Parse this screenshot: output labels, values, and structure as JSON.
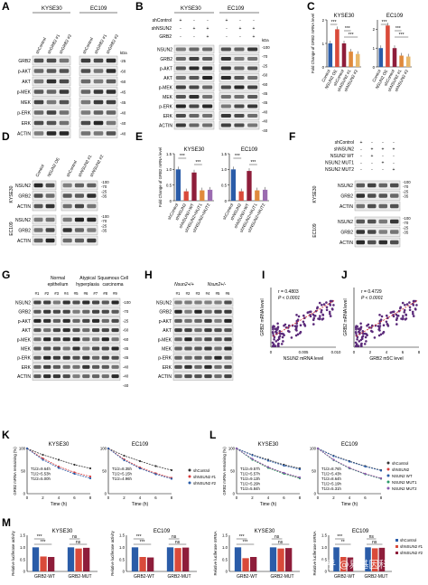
{
  "panels": {
    "A": {
      "letter": "A",
      "groups": [
        "KYSE30",
        "EC109"
      ],
      "columns": [
        "shControl",
        "shGRB2 #1",
        "shGRB2 #2"
      ],
      "row_labels": [
        "GRB2",
        "p-AKT",
        "AKT",
        "p-MEK",
        "MEK",
        "p-ERK",
        "ERK",
        "ACTIN"
      ],
      "kda_header": "kDa",
      "kda": [
        "-25",
        "-60",
        "-60",
        "-45",
        "-45",
        "-40",
        "-40",
        "-40"
      ]
    },
    "B": {
      "letter": "B",
      "groups": [
        "KYSE30",
        "EC109"
      ],
      "conditions": [
        {
          "label": "shControl",
          "marks": [
            "+",
            "-",
            "-",
            "+",
            "-",
            "-"
          ]
        },
        {
          "label": "shNSUN2",
          "marks": [
            "-",
            "+",
            "+",
            "-",
            "+",
            "+"
          ]
        },
        {
          "label": "GRB2",
          "marks": [
            "-",
            "-",
            "+",
            "-",
            "-",
            "+"
          ]
        }
      ],
      "row_labels": [
        "NSUN2",
        "GRB2",
        "p-AKT",
        "AKT",
        "p-MEK",
        "MEK",
        "p-ERK",
        "ERK",
        "ACTIN"
      ],
      "kda_header": "kDa",
      "kda": [
        "-100",
        "-70",
        "-25",
        "-60",
        "-60",
        "-45",
        "-45",
        "-40",
        "-40",
        "-40"
      ]
    },
    "C": {
      "letter": "C"
    },
    "D": {
      "letter": "D",
      "columns": [
        "Control",
        "NSUN2 OE",
        "shControl",
        "shNSUN2 #1",
        "shNSUN2 #2"
      ],
      "groups": [
        "KYSE30",
        "EC109"
      ],
      "row_labels": [
        "NSUN2",
        "GRB2",
        "ACTIN",
        "NSUN2",
        "GRB2",
        "ACTIN"
      ],
      "kda": [
        "-100",
        "-70",
        "-25",
        "-35",
        "-100",
        "-70",
        "-25",
        "-35"
      ]
    },
    "E": {
      "letter": "E"
    },
    "F": {
      "letter": "F",
      "conditions": [
        {
          "label": "shControl",
          "marks": [
            "+",
            "-",
            "-",
            "-"
          ]
        },
        {
          "label": "shNSUN2",
          "marks": [
            "-",
            "+",
            "+",
            "+"
          ]
        },
        {
          "label": "NSUN2 WT",
          "marks": [
            "-",
            "+",
            "-",
            "-"
          ]
        },
        {
          "label": "NSUN2 MUT1",
          "marks": [
            "-",
            "-",
            "+",
            "-"
          ]
        },
        {
          "label": "NSUN2 MUT2",
          "marks": [
            "-",
            "-",
            "-",
            "+"
          ]
        }
      ],
      "groups": [
        "KYSE30",
        "EC109"
      ],
      "row_labels": [
        "NSUN2",
        "GRB2",
        "ACTIN",
        "NSUN2",
        "GRB2",
        "ACTIN"
      ],
      "kda": [
        "-100",
        "-70",
        "-25",
        "-35",
        "-100",
        "-70",
        "-25",
        "-35"
      ]
    },
    "G": {
      "letter": "G",
      "groups": [
        "Normal epithelium",
        "Atypical hyperplasia",
        "Squamous Cell carcinoma"
      ],
      "lanes": [
        "#1",
        "#2",
        "#3",
        "#4",
        "#5",
        "#6",
        "#7",
        "#8",
        "#9"
      ],
      "row_labels": [
        "NSUN2",
        "GRB2",
        "p-AKT",
        "AKT",
        "p-MEK",
        "MEK",
        "p-ERK",
        "ERK",
        "ACTIN"
      ],
      "kda": [
        "-100",
        "-70",
        "-25",
        "-60",
        "-60",
        "-45",
        "-45",
        "-40",
        "-40",
        "-40"
      ]
    },
    "H": {
      "letter": "H",
      "groups": [
        "Nsun2+/+",
        "Nsun2+/-"
      ],
      "lanes": [
        "#1",
        "#2",
        "#3",
        "#4",
        "#5",
        "#6"
      ],
      "row_labels": [
        "NSUN2",
        "GRB2",
        "p-AKT",
        "AKT",
        "p-MEK",
        "MEK",
        "p-ERK",
        "ERK",
        "ACTIN"
      ]
    },
    "I": {
      "letter": "I",
      "r": "r = 0.4803",
      "p": "P < 0.0001"
    },
    "J": {
      "letter": "J",
      "r": "r = 0.4729",
      "p": "P < 0.0001"
    },
    "K": {
      "letter": "K",
      "legend": [
        "shControl",
        "shNSUN2 #1",
        "shNSUN2 #2"
      ]
    },
    "L": {
      "letter": "L",
      "legend": [
        "shControl",
        "shNSUN2",
        "NSUN2 WT",
        "NSUN2 MUT1",
        "NSUN2 MUT2"
      ]
    },
    "M": {
      "letter": "M",
      "legend": [
        "shControl",
        "shNSUN2 #1",
        "shNSUN2 #2"
      ]
    }
  },
  "chart_data": [
    {
      "panel": "C",
      "type": "bar",
      "title": "KYSE30",
      "ylabel": "Fold Change of GRB2 mRNA level",
      "ylim": [
        0,
        2
      ],
      "yticks": [
        "0",
        "1",
        "2"
      ],
      "categories": [
        "Control",
        "NSUN2 OE",
        "shControl",
        "shNSUN2 #1",
        "shNSUN2 #2"
      ],
      "values": [
        1.0,
        1.6,
        1.0,
        0.65,
        0.55
      ],
      "colors": [
        "#2a5ca8",
        "#d94a3a",
        "#8e1d3a",
        "#e08a3c",
        "#e8b86a"
      ],
      "significance": [
        "***",
        "***",
        "***"
      ]
    },
    {
      "panel": "C",
      "type": "bar",
      "title": "EC109",
      "ylabel": "",
      "ylim": [
        0,
        2.5
      ],
      "yticks": [
        "0",
        "1",
        "2"
      ],
      "categories": [
        "Control",
        "NSUN2 OE",
        "shControl",
        "shNSUN2 #1",
        "shNSUN2 #2"
      ],
      "values": [
        1.0,
        2.2,
        1.0,
        0.6,
        0.55
      ],
      "colors": [
        "#2a5ca8",
        "#d94a3a",
        "#8e1d3a",
        "#e08a3c",
        "#e8b86a"
      ],
      "significance": [
        "***",
        "***",
        "***"
      ]
    },
    {
      "panel": "E",
      "type": "bar",
      "title": "KYSE30",
      "ylabel": "Fold Change of GRB2 mRNA level",
      "ylim": [
        0,
        1.5
      ],
      "yticks": [
        "0",
        "0.5",
        "1.0",
        "1.5"
      ],
      "categories": [
        "shControl",
        "shNSUN2",
        "shNSUN2+WT",
        "shNSUN2+MUT1",
        "shNSUN2+MUT2"
      ],
      "values": [
        1.0,
        0.3,
        0.9,
        0.33,
        0.35
      ],
      "colors": [
        "#2a5ca8",
        "#d94a3a",
        "#8e1d3a",
        "#e08a3c",
        "#9b6bb0"
      ],
      "significance": [
        "***",
        "***"
      ]
    },
    {
      "panel": "E",
      "type": "bar",
      "title": "EC109",
      "ylabel": "",
      "ylim": [
        0,
        1.5
      ],
      "yticks": [
        "0",
        "0.5",
        "1.0",
        "1.5"
      ],
      "categories": [
        "shControl",
        "shNSUN2",
        "shNSUN2+WT",
        "shNSUN2+MUT1",
        "shNSUN2+MUT2"
      ],
      "values": [
        1.0,
        0.3,
        0.95,
        0.33,
        0.35
      ],
      "colors": [
        "#2a5ca8",
        "#d94a3a",
        "#8e1d3a",
        "#e08a3c",
        "#9b6bb0"
      ],
      "significance": [
        "***",
        "***"
      ]
    },
    {
      "panel": "I",
      "type": "scatter",
      "xlabel": "NSUN2 mRNA level",
      "ylabel": "GRB2 mRNA level",
      "xlim": [
        0,
        0.01
      ],
      "xticks": [
        "0",
        "0.005",
        "0.010"
      ],
      "trend": "positive"
    },
    {
      "panel": "J",
      "type": "scatter",
      "xlabel": "GRB2 m5C level",
      "ylabel": "GRB2 mRNA level",
      "xlim": [
        0,
        8
      ],
      "xticks": [
        "0",
        "2",
        "4",
        "6",
        "8"
      ],
      "trend": "positive"
    },
    {
      "panel": "K",
      "type": "line",
      "title": "KYSE30",
      "xlabel": "Time (h)",
      "ylabel": "GRB2 mRNA remaining (%)",
      "xlim": [
        0,
        8
      ],
      "ylim": [
        0,
        100
      ],
      "xticks": [
        "0",
        "2",
        "4",
        "6",
        "8"
      ],
      "yticks": [
        "0",
        "50",
        "100"
      ],
      "half_lives": [
        "T1/2=9.64h",
        "T1/2=5.53h",
        "T1/2=5.00h"
      ],
      "x": [
        0,
        2,
        4,
        6,
        8
      ],
      "series": [
        {
          "name": "shControl",
          "color": "#333333",
          "values": [
            100,
            86,
            75,
            64,
            56
          ]
        },
        {
          "name": "shNSUN2 #1",
          "color": "#d93b3b",
          "values": [
            100,
            78,
            60,
            47,
            38
          ]
        },
        {
          "name": "shNSUN2 #2",
          "color": "#2a5ca8",
          "values": [
            100,
            75,
            57,
            44,
            34
          ]
        }
      ]
    },
    {
      "panel": "K",
      "type": "line",
      "title": "EC109",
      "xlabel": "Time (h)",
      "ylabel": "",
      "xlim": [
        0,
        8
      ],
      "ylim": [
        0,
        100
      ],
      "xticks": [
        "0",
        "2",
        "4",
        "6",
        "8"
      ],
      "yticks": [
        "0",
        "50",
        "100"
      ],
      "half_lives": [
        "T1/2=8.35h",
        "T1/2=5.15h",
        "T1/2=4.96h"
      ],
      "x": [
        0,
        2,
        4,
        6,
        8
      ],
      "series": [
        {
          "name": "shControl",
          "color": "#333333",
          "values": [
            100,
            84,
            72,
            61,
            52
          ]
        },
        {
          "name": "shNSUN2 #1",
          "color": "#d93b3b",
          "values": [
            100,
            76,
            58,
            45,
            35
          ]
        },
        {
          "name": "shNSUN2 #2",
          "color": "#2a5ca8",
          "values": [
            100,
            74,
            56,
            43,
            33
          ]
        }
      ]
    },
    {
      "panel": "L",
      "type": "line",
      "title": "KYSE30",
      "xlabel": "Time (h)",
      "ylabel": "GRB2 mRNA remaining (%)",
      "xlim": [
        0,
        8
      ],
      "ylim": [
        0,
        100
      ],
      "xticks": [
        "0",
        "2",
        "4",
        "6",
        "8"
      ],
      "yticks": [
        "0",
        "50",
        "100"
      ],
      "half_lives": [
        "T1/2=9.57h",
        "T1/2=5.57h",
        "T1/2=9.13h",
        "T1/2=5.29h",
        "T1/2=5.84h"
      ],
      "x": [
        0,
        2,
        4,
        6,
        8
      ],
      "series": [
        {
          "name": "shControl",
          "color": "#333333",
          "values": [
            100,
            86,
            75,
            64,
            56
          ]
        },
        {
          "name": "shNSUN2",
          "color": "#d93b3b",
          "values": [
            100,
            76,
            58,
            45,
            35
          ]
        },
        {
          "name": "NSUN2 WT",
          "color": "#2a5ca8",
          "values": [
            100,
            85,
            73,
            62,
            54
          ]
        },
        {
          "name": "NSUN2 MUT1",
          "color": "#2a9a6a",
          "values": [
            100,
            75,
            57,
            44,
            34
          ]
        },
        {
          "name": "NSUN2 MUT2",
          "color": "#8a5bb0",
          "values": [
            100,
            77,
            59,
            46,
            36
          ]
        }
      ]
    },
    {
      "panel": "L",
      "type": "line",
      "title": "EC109",
      "xlabel": "Time (h)",
      "ylabel": "",
      "xlim": [
        0,
        8
      ],
      "ylim": [
        0,
        100
      ],
      "xticks": [
        "0",
        "2",
        "4",
        "6",
        "8"
      ],
      "yticks": [
        "0",
        "50",
        "100"
      ],
      "half_lives": [
        "T1/2=8.76h",
        "T1/2=5.43h",
        "T1/2=8.64h",
        "T1/2=5.19h",
        "T1/2=5.31h"
      ],
      "x": [
        0,
        2,
        4,
        6,
        8
      ],
      "series": [
        {
          "name": "shControl",
          "color": "#333333",
          "values": [
            100,
            84,
            72,
            61,
            52
          ]
        },
        {
          "name": "shNSUN2",
          "color": "#d93b3b",
          "values": [
            100,
            75,
            57,
            44,
            34
          ]
        },
        {
          "name": "NSUN2 WT",
          "color": "#2a5ca8",
          "values": [
            100,
            83,
            71,
            60,
            51
          ]
        },
        {
          "name": "NSUN2 MUT1",
          "color": "#2a9a6a",
          "values": [
            100,
            74,
            56,
            43,
            33
          ]
        },
        {
          "name": "NSUN2 MUT2",
          "color": "#8a5bb0",
          "values": [
            100,
            75,
            57,
            44,
            34
          ]
        }
      ]
    },
    {
      "panel": "M",
      "type": "bar",
      "title": "KYSE30",
      "ylabel": "Relative luciferase activity",
      "ylim": [
        0,
        1.5
      ],
      "yticks": [
        "0",
        "0.5",
        "1.0",
        "1.5"
      ],
      "categories": [
        "GRB2-WT",
        "GRB2-MUT"
      ],
      "series": [
        {
          "name": "shControl",
          "values": [
            1.0,
            1.0
          ]
        },
        {
          "name": "shNSUN2 #1",
          "values": [
            0.62,
            0.95
          ]
        },
        {
          "name": "shNSUN2 #2",
          "values": [
            0.6,
            0.98
          ]
        }
      ],
      "colors": [
        "#2a5ca8",
        "#d94a3a",
        "#8e1d3a"
      ],
      "significance": [
        "***",
        "***",
        "ns",
        "ns"
      ]
    },
    {
      "panel": "M",
      "type": "bar",
      "title": "EC109",
      "ylabel": "Relative luciferase activity",
      "ylim": [
        0,
        1.5
      ],
      "yticks": [
        "0",
        "0.5",
        "1.0",
        "1.5"
      ],
      "categories": [
        "GRB2-WT",
        "GRB2-MUT"
      ],
      "series": [
        {
          "name": "shControl",
          "values": [
            1.0,
            1.0
          ]
        },
        {
          "name": "shNSUN2 #1",
          "values": [
            0.6,
            0.97
          ]
        },
        {
          "name": "shNSUN2 #2",
          "values": [
            0.58,
            0.99
          ]
        }
      ],
      "colors": [
        "#2a5ca8",
        "#d94a3a",
        "#8e1d3a"
      ],
      "significance": [
        "***",
        "***",
        "ns",
        "ns"
      ]
    },
    {
      "panel": "M",
      "type": "bar",
      "title": "KYSE30",
      "ylabel": "Relative luciferase mRNA",
      "ylim": [
        0,
        1.5
      ],
      "yticks": [
        "0",
        "0.5",
        "1.0",
        "1.5"
      ],
      "categories": [
        "GRB2-WT",
        "GRB2-MUT"
      ],
      "series": [
        {
          "name": "shControl",
          "values": [
            1.0,
            1.0
          ]
        },
        {
          "name": "shNSUN2 #1",
          "values": [
            0.55,
            0.95
          ]
        },
        {
          "name": "shNSUN2 #2",
          "values": [
            0.6,
            0.97
          ]
        }
      ],
      "colors": [
        "#2a5ca8",
        "#d94a3a",
        "#8e1d3a"
      ],
      "significance": [
        "***",
        "***",
        "ns",
        "ns"
      ]
    },
    {
      "panel": "M",
      "type": "bar",
      "title": "EC109",
      "ylabel": "Relative luciferase mRNA",
      "ylim": [
        0,
        1.5
      ],
      "yticks": [
        "0",
        "0.5",
        "1.0",
        "1.5"
      ],
      "categories": [
        "GRB2-WT",
        "GRB2-MUT"
      ],
      "series": [
        {
          "name": "shControl",
          "values": [
            1.0,
            1.0
          ]
        },
        {
          "name": "shNSUN2 #1",
          "values": [
            0.6,
            0.96
          ]
        },
        {
          "name": "shNSUN2 #2",
          "values": [
            0.58,
            0.98
          ]
        }
      ],
      "colors": [
        "#2a5ca8",
        "#d94a3a",
        "#8e1d3a"
      ],
      "significance": [
        "***",
        "**",
        "ns",
        "ns"
      ]
    }
  ],
  "watermark": "知乎 @易基因科技"
}
